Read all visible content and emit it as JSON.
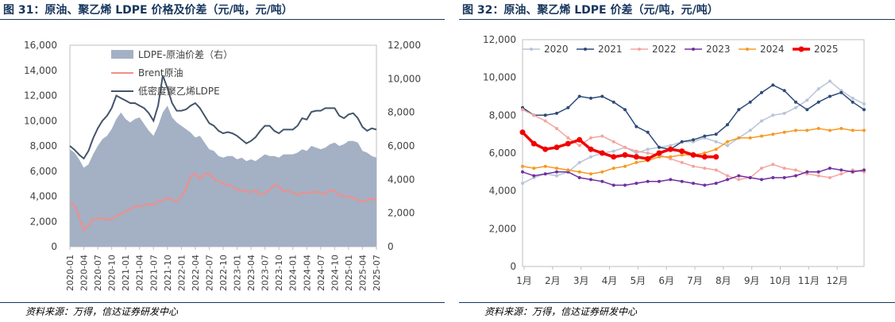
{
  "figures": {
    "left": {
      "title": "图 31：原油、聚乙烯 LDPE 价格及价差（元/吨，元/吨）",
      "source": "资料来源：万得，信达证券研发中心"
    },
    "right": {
      "title": "图 32：原油、聚乙烯 LDPE 价差（元/吨，元/吨）",
      "source": "资料来源：万得，信达证券研发中心"
    }
  },
  "chart_data": [
    {
      "type": "line+area",
      "title": "原油、聚乙烯 LDPE 价格及价差",
      "x_start": "2020-01",
      "x_end": "2025-07",
      "x_ticks": [
        "2020-01",
        "2020-04",
        "2020-07",
        "2020-10",
        "2021-01",
        "2021-04",
        "2021-07",
        "2021-10",
        "2022-01",
        "2022-04",
        "2022-07",
        "2022-10",
        "2023-01",
        "2023-04",
        "2023-07",
        "2023-10",
        "2024-01",
        "2024-04",
        "2024-07",
        "2024-10",
        "2025-01",
        "2025-04",
        "2025-07"
      ],
      "ylim_left": [
        0,
        16000
      ],
      "yticks_left": [
        "0",
        "2,000",
        "4,000",
        "6,000",
        "8,000",
        "10,000",
        "12,000",
        "14,000",
        "16,000"
      ],
      "ylim_right": [
        0,
        12000
      ],
      "yticks_right": [
        "0",
        "2,000",
        "4,000",
        "6,000",
        "8,000",
        "10,000",
        "12,000"
      ],
      "legend": [
        "LDPE-原油价差（右）",
        "Brent原油",
        "低密度聚乙烯LDPE"
      ],
      "series": [
        {
          "name": "LDPE-原油价差（右）",
          "axis": "right",
          "kind": "area",
          "color": "#a4b0c4",
          "values": [
            5800,
            5600,
            5200,
            4700,
            4900,
            5500,
            6000,
            6400,
            6600,
            7000,
            7600,
            8000,
            7600,
            7400,
            7600,
            7700,
            7300,
            6900,
            6600,
            7200,
            8000,
            8400,
            7700,
            7400,
            7200,
            7000,
            6800,
            6500,
            6600,
            6200,
            5800,
            5700,
            5400,
            5300,
            5400,
            5400,
            5200,
            5300,
            5100,
            5200,
            5100,
            5300,
            5500,
            5400,
            5400,
            5300,
            5500,
            5500,
            5500,
            5600,
            5800,
            5700,
            6000,
            5900,
            5800,
            5900,
            6100,
            6200,
            6000,
            6100,
            6300,
            6300,
            6200,
            5700,
            5600,
            5400,
            5300
          ]
        },
        {
          "name": "Brent原油",
          "axis": "left",
          "kind": "line",
          "color": "#f28e8a",
          "values": [
            3500,
            3300,
            2300,
            1300,
            1700,
            2200,
            2200,
            2300,
            2100,
            2200,
            2400,
            2600,
            2800,
            3000,
            3200,
            3200,
            3300,
            3400,
            3300,
            3600,
            3700,
            3900,
            3700,
            3600,
            4000,
            4600,
            5600,
            5800,
            5400,
            5800,
            5800,
            5400,
            5200,
            5000,
            4900,
            4800,
            4500,
            4500,
            4400,
            4300,
            4500,
            4100,
            4300,
            4500,
            4900,
            4800,
            4400,
            4400,
            4300,
            4100,
            4300,
            4300,
            4300,
            4400,
            4200,
            4200,
            4500,
            4400,
            4100,
            4000,
            4000,
            3900,
            3700,
            3600,
            3700,
            3800,
            3700
          ]
        },
        {
          "name": "低密度聚乙烯LDPE",
          "axis": "left",
          "kind": "line",
          "color": "#44546a",
          "values": [
            8000,
            7700,
            7300,
            7000,
            7600,
            8600,
            9400,
            10000,
            10400,
            11000,
            12000,
            11800,
            11600,
            11400,
            11400,
            11200,
            11000,
            10600,
            10000,
            11200,
            13600,
            12600,
            11400,
            10800,
            10800,
            10900,
            11200,
            11400,
            11000,
            10400,
            9800,
            9600,
            9200,
            9000,
            9100,
            9000,
            8800,
            8500,
            8200,
            8400,
            8700,
            9200,
            9600,
            9600,
            9200,
            9000,
            9300,
            9300,
            9300,
            9600,
            10200,
            10100,
            10700,
            10800,
            10800,
            11000,
            11000,
            11000,
            10400,
            10200,
            10500,
            10600,
            10200,
            9500,
            9200,
            9400,
            9300
          ]
        }
      ]
    },
    {
      "type": "line",
      "title": "原油、聚乙烯 LDPE 价差",
      "x_ticks": [
        "1月",
        "2月",
        "3月",
        "4月",
        "5月",
        "6月",
        "7月",
        "8月",
        "9月",
        "10月",
        "11月",
        "12月"
      ],
      "ylim": [
        0,
        12000
      ],
      "yticks": [
        "0",
        "2,000",
        "4,000",
        "6,000",
        "8,000",
        "10,000",
        "12,000"
      ],
      "legend": [
        "2020",
        "2021",
        "2022",
        "2023",
        "2024",
        "2025"
      ],
      "series": [
        {
          "name": "2020",
          "color": "#b8c4d6",
          "width": 1.5,
          "marker": "circle",
          "values": [
            4400,
            4700,
            4900,
            4800,
            5000,
            5500,
            5800,
            6000,
            6100,
            6300,
            6000,
            6200,
            6300,
            6400,
            6600,
            6600,
            6800,
            6600,
            6400,
            6800,
            7200,
            7700,
            8000,
            8100,
            8400,
            8800,
            9400,
            9800,
            9300,
            8900,
            8600
          ]
        },
        {
          "name": "2021",
          "color": "#2e4a7a",
          "width": 1.5,
          "marker": "circle",
          "values": [
            8400,
            8000,
            8000,
            8100,
            8400,
            9000,
            8900,
            9000,
            8700,
            8300,
            7400,
            7100,
            6300,
            6200,
            6600,
            6700,
            6900,
            7000,
            7500,
            8300,
            8700,
            9200,
            9600,
            9300,
            8700,
            8300,
            8700,
            9000,
            9200,
            8700,
            8300
          ]
        },
        {
          "name": "2022",
          "color": "#f4a5a0",
          "width": 1.5,
          "marker": "circle",
          "values": [
            8300,
            8000,
            7700,
            7300,
            6800,
            6400,
            6800,
            6900,
            6600,
            6300,
            6100,
            6000,
            5900,
            5700,
            5500,
            5300,
            5200,
            5100,
            4800,
            4600,
            4700,
            5200,
            5400,
            5200,
            5100,
            4900,
            4800,
            4700,
            4900,
            5100,
            5000
          ]
        },
        {
          "name": "2023",
          "color": "#7030a0",
          "width": 1.5,
          "marker": "circle",
          "values": [
            5000,
            4800,
            4900,
            5000,
            5000,
            4700,
            4600,
            4500,
            4300,
            4300,
            4400,
            4500,
            4500,
            4600,
            4500,
            4400,
            4300,
            4400,
            4600,
            4800,
            4700,
            4600,
            4700,
            4700,
            4800,
            5000,
            5000,
            5200,
            5100,
            5000,
            5100
          ]
        },
        {
          "name": "2024",
          "color": "#f59a23",
          "width": 1.5,
          "marker": "circle",
          "values": [
            5300,
            5200,
            5300,
            5200,
            5100,
            5000,
            4900,
            5000,
            5200,
            5300,
            5500,
            5600,
            5800,
            5800,
            5900,
            5900,
            6000,
            6200,
            6600,
            6800,
            6800,
            6900,
            7000,
            7100,
            7200,
            7200,
            7300,
            7200,
            7300,
            7200,
            7200
          ]
        },
        {
          "name": "2025",
          "color": "#f20000",
          "width": 3.5,
          "marker": "circle",
          "values": [
            7100,
            6500,
            6200,
            6300,
            6500,
            6700,
            6200,
            6000,
            5800,
            5900,
            5800,
            5700,
            6000,
            6200,
            6100,
            5900,
            5800,
            5800
          ]
        }
      ]
    }
  ]
}
